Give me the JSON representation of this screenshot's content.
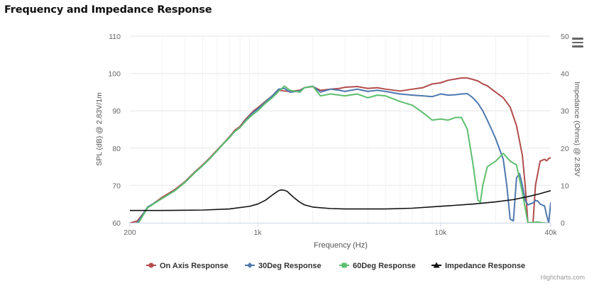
{
  "page": {
    "title": "Frequency and Impedance Response"
  },
  "credits": "Highcharts.com",
  "colors": {
    "on_axis": "#b24c4c",
    "deg30": "#4e78b0",
    "deg60": "#5cbf6e",
    "impedance": "#111111",
    "grid": "#e6e6e6",
    "axis": "#ccd6eb"
  },
  "chart_data": {
    "type": "line",
    "title": "Frequency and Impedance Response",
    "xlabel": "Frequency (Hz)",
    "ylabel": "SPL (dB) @ 2.83V/1m",
    "y2label": "Impedance (Ohms) @ 2.83V",
    "x_scale": "log",
    "xlim": [
      200,
      40000
    ],
    "ylim": [
      60,
      110
    ],
    "y2lim": [
      0,
      50
    ],
    "x_ticks": [
      {
        "v": 200,
        "label": "200"
      },
      {
        "v": 1000,
        "label": "1k"
      },
      {
        "v": 10000,
        "label": "10k"
      },
      {
        "v": 40000,
        "label": "40k"
      }
    ],
    "y_ticks": [
      "60",
      "70",
      "80",
      "90",
      "100",
      "110"
    ],
    "y2_ticks": [
      "0",
      "10",
      "20",
      "30",
      "40",
      "50"
    ],
    "legend_position": "bottom",
    "series": [
      {
        "name": "On Axis Response",
        "axis": "left",
        "marker": "circle",
        "color": "#b24c4c",
        "points": [
          [
            200,
            59.9
          ],
          [
            220,
            60.5
          ],
          [
            250,
            64
          ],
          [
            300,
            66.8
          ],
          [
            350,
            68.8
          ],
          [
            400,
            71
          ],
          [
            450,
            73.5
          ],
          [
            500,
            75.5
          ],
          [
            550,
            77.5
          ],
          [
            600,
            79.5
          ],
          [
            650,
            81.3
          ],
          [
            700,
            83
          ],
          [
            750,
            84.8
          ],
          [
            800,
            85.8
          ],
          [
            850,
            87.5
          ],
          [
            900,
            88.8
          ],
          [
            950,
            90
          ],
          [
            1000,
            90.8
          ],
          [
            1100,
            92.5
          ],
          [
            1200,
            94
          ],
          [
            1300,
            95.5
          ],
          [
            1400,
            95.3
          ],
          [
            1500,
            95.2
          ],
          [
            1700,
            95.5
          ],
          [
            1800,
            96.2
          ],
          [
            2000,
            96.5
          ],
          [
            2200,
            95.5
          ],
          [
            2500,
            95.8
          ],
          [
            2800,
            96
          ],
          [
            3000,
            96.3
          ],
          [
            3500,
            96.5
          ],
          [
            4000,
            96
          ],
          [
            4500,
            96.2
          ],
          [
            5000,
            95.8
          ],
          [
            6000,
            95.3
          ],
          [
            7000,
            95.8
          ],
          [
            8000,
            96.2
          ],
          [
            9000,
            97.2
          ],
          [
            10000,
            97.5
          ],
          [
            11000,
            98.2
          ],
          [
            12000,
            98.5
          ],
          [
            13000,
            98.8
          ],
          [
            14000,
            98.8
          ],
          [
            15000,
            98.4
          ],
          [
            16000,
            98
          ],
          [
            17000,
            97.2
          ],
          [
            18000,
            96.7
          ],
          [
            19000,
            95.8
          ],
          [
            20000,
            95
          ],
          [
            22000,
            93.5
          ],
          [
            24000,
            91
          ],
          [
            26000,
            86
          ],
          [
            28000,
            78
          ],
          [
            29000,
            70
          ],
          [
            30000,
            60
          ],
          [
            32000,
            60
          ],
          [
            33000,
            70
          ],
          [
            35000,
            76.5
          ],
          [
            37000,
            77
          ],
          [
            38000,
            76.6
          ],
          [
            39000,
            77.2
          ],
          [
            40000,
            77.5
          ]
        ]
      },
      {
        "name": "30Deg Response",
        "axis": "left",
        "marker": "diamond",
        "color": "#4e78b0",
        "points": [
          [
            200,
            59.5
          ],
          [
            220,
            60
          ],
          [
            250,
            64.2
          ],
          [
            300,
            66.5
          ],
          [
            350,
            68.5
          ],
          [
            400,
            70.8
          ],
          [
            450,
            73.3
          ],
          [
            500,
            75.3
          ],
          [
            550,
            77.3
          ],
          [
            600,
            79.3
          ],
          [
            650,
            81.2
          ],
          [
            700,
            82.8
          ],
          [
            750,
            84.5
          ],
          [
            800,
            85.5
          ],
          [
            850,
            87.2
          ],
          [
            900,
            88.5
          ],
          [
            950,
            89.7
          ],
          [
            1000,
            90.5
          ],
          [
            1100,
            92.3
          ],
          [
            1200,
            94
          ],
          [
            1300,
            95.8
          ],
          [
            1400,
            96
          ],
          [
            1500,
            95
          ],
          [
            1700,
            95.3
          ],
          [
            1800,
            96.2
          ],
          [
            2000,
            96.6
          ],
          [
            2200,
            95
          ],
          [
            2500,
            95.8
          ],
          [
            2800,
            95.5
          ],
          [
            3000,
            95.2
          ],
          [
            3500,
            95.8
          ],
          [
            4000,
            95.2
          ],
          [
            4500,
            95.5
          ],
          [
            5000,
            95.2
          ],
          [
            6000,
            94.5
          ],
          [
            7000,
            94.2
          ],
          [
            8000,
            94
          ],
          [
            9000,
            93.8
          ],
          [
            10000,
            94.5
          ],
          [
            11000,
            94.2
          ],
          [
            12000,
            94.3
          ],
          [
            13000,
            94.5
          ],
          [
            14000,
            94.6
          ],
          [
            15000,
            93.5
          ],
          [
            16000,
            92
          ],
          [
            17000,
            90
          ],
          [
            18000,
            87.5
          ],
          [
            19000,
            85
          ],
          [
            20000,
            82.5
          ],
          [
            22000,
            77
          ],
          [
            23000,
            70
          ],
          [
            24000,
            61
          ],
          [
            25000,
            60.5
          ],
          [
            26000,
            72
          ],
          [
            27000,
            73.2
          ],
          [
            28000,
            70
          ],
          [
            29000,
            66
          ],
          [
            30000,
            64.8
          ],
          [
            32000,
            65.3
          ],
          [
            33000,
            66
          ],
          [
            34000,
            65.8
          ],
          [
            35000,
            65
          ],
          [
            37000,
            64.5
          ],
          [
            38000,
            62
          ],
          [
            39000,
            60
          ],
          [
            40000,
            65.5
          ]
        ]
      },
      {
        "name": "60Deg Response",
        "axis": "left",
        "marker": "square",
        "color": "#5cbf6e",
        "points": [
          [
            200,
            59
          ],
          [
            220,
            59.5
          ],
          [
            250,
            64
          ],
          [
            300,
            66.5
          ],
          [
            350,
            68.5
          ],
          [
            400,
            70.8
          ],
          [
            450,
            73.3
          ],
          [
            500,
            75.3
          ],
          [
            550,
            77.3
          ],
          [
            600,
            79.3
          ],
          [
            650,
            81.2
          ],
          [
            700,
            82.8
          ],
          [
            750,
            84.5
          ],
          [
            800,
            85.5
          ],
          [
            850,
            87
          ],
          [
            900,
            88.2
          ],
          [
            950,
            89.2
          ],
          [
            1000,
            90
          ],
          [
            1100,
            92
          ],
          [
            1200,
            93.5
          ],
          [
            1300,
            95.2
          ],
          [
            1400,
            96.6
          ],
          [
            1500,
            95.5
          ],
          [
            1700,
            95
          ],
          [
            1800,
            96.2
          ],
          [
            2000,
            96.6
          ],
          [
            2200,
            94
          ],
          [
            2500,
            94.5
          ],
          [
            2800,
            94.2
          ],
          [
            3000,
            94
          ],
          [
            3500,
            94.5
          ],
          [
            4000,
            93.5
          ],
          [
            4500,
            94.2
          ],
          [
            5000,
            94
          ],
          [
            6000,
            92.5
          ],
          [
            7000,
            91.5
          ],
          [
            8000,
            89.5
          ],
          [
            9000,
            87.5
          ],
          [
            10000,
            87.8
          ],
          [
            11000,
            87.5
          ],
          [
            12000,
            88.2
          ],
          [
            13000,
            88.2
          ],
          [
            14000,
            85
          ],
          [
            15000,
            76
          ],
          [
            16000,
            66
          ],
          [
            16500,
            65.5
          ],
          [
            17000,
            70
          ],
          [
            18000,
            75
          ],
          [
            20000,
            76.5
          ],
          [
            22000,
            78.6
          ],
          [
            24000,
            76.5
          ],
          [
            26000,
            75.5
          ],
          [
            28000,
            68
          ],
          [
            30000,
            60
          ],
          [
            34000,
            60.2
          ],
          [
            36000,
            60
          ],
          [
            40000,
            59.8
          ]
        ]
      },
      {
        "name": "Impedance Response",
        "axis": "right",
        "marker": "triangle",
        "color": "#111111",
        "points": [
          [
            200,
            3.3
          ],
          [
            300,
            3.3
          ],
          [
            500,
            3.4
          ],
          [
            700,
            3.7
          ],
          [
            900,
            4.4
          ],
          [
            1000,
            5
          ],
          [
            1100,
            6
          ],
          [
            1200,
            7.4
          ],
          [
            1300,
            8.6
          ],
          [
            1350,
            8.8
          ],
          [
            1400,
            8.7
          ],
          [
            1450,
            8.4
          ],
          [
            1500,
            7.7
          ],
          [
            1600,
            6.5
          ],
          [
            1700,
            5.5
          ],
          [
            1800,
            4.8
          ],
          [
            2000,
            4.2
          ],
          [
            2500,
            3.8
          ],
          [
            3000,
            3.7
          ],
          [
            5000,
            3.7
          ],
          [
            7000,
            3.9
          ],
          [
            10000,
            4.4
          ],
          [
            15000,
            5
          ],
          [
            20000,
            5.6
          ],
          [
            25000,
            6.2
          ],
          [
            30000,
            7
          ],
          [
            35000,
            7.8
          ],
          [
            40000,
            8.6
          ]
        ]
      }
    ]
  }
}
